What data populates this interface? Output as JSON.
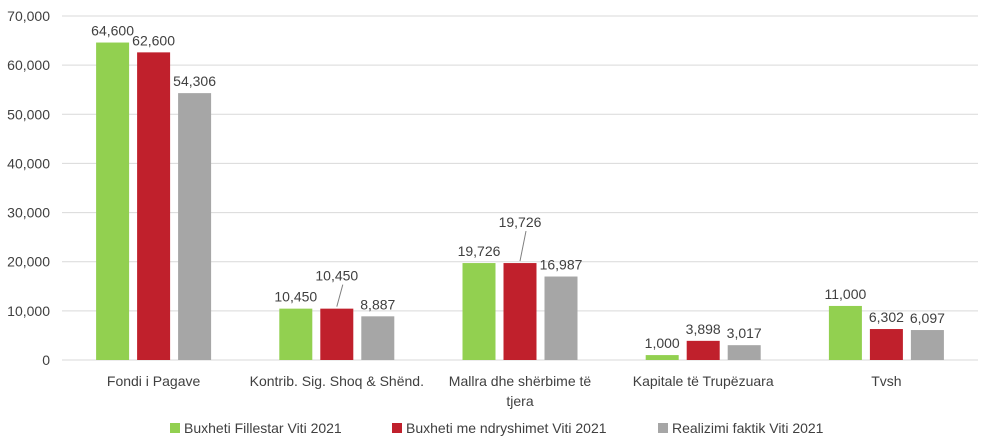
{
  "chart_data": {
    "type": "bar",
    "title": "",
    "xlabel": "",
    "ylabel": "",
    "ylim": [
      0,
      70000
    ],
    "yticks": [
      0,
      10000,
      20000,
      30000,
      40000,
      50000,
      60000,
      70000
    ],
    "ytick_labels": [
      "0",
      "10,000",
      "20,000",
      "30,000",
      "40,000",
      "50,000",
      "60,000",
      "70,000"
    ],
    "grid": true,
    "legend_position": "bottom",
    "categories": [
      [
        "Fondi  i Pagave"
      ],
      [
        "Kontrib. Sig. Shoq & Shënd."
      ],
      [
        "Mallra dhe shërbime të",
        "tjera"
      ],
      [
        "Kapitale të Trupëzuara"
      ],
      [
        "Tvsh"
      ]
    ],
    "series": [
      {
        "name": "Buxheti Fillestar Viti 2021",
        "color": "#92d050",
        "values": [
          64600,
          10450,
          19726,
          1000,
          11000
        ],
        "labels": [
          "64,600",
          "10,450",
          "19,726",
          "1,000",
          "11,000"
        ]
      },
      {
        "name": "Buxheti me  ndryshimet Viti 2021",
        "color": "#c0202c",
        "values": [
          62600,
          10450,
          19726,
          3898,
          6302
        ],
        "labels": [
          "62,600",
          "10,450",
          "19,726",
          "3,898",
          "6,302"
        ]
      },
      {
        "name": "Realizimi faktik Viti 2021",
        "color": "#a6a6a6",
        "values": [
          54306,
          8887,
          16987,
          3017,
          6097
        ],
        "labels": [
          "54,306",
          "8,887",
          "16,987",
          "3,017",
          "6,097"
        ]
      }
    ]
  }
}
